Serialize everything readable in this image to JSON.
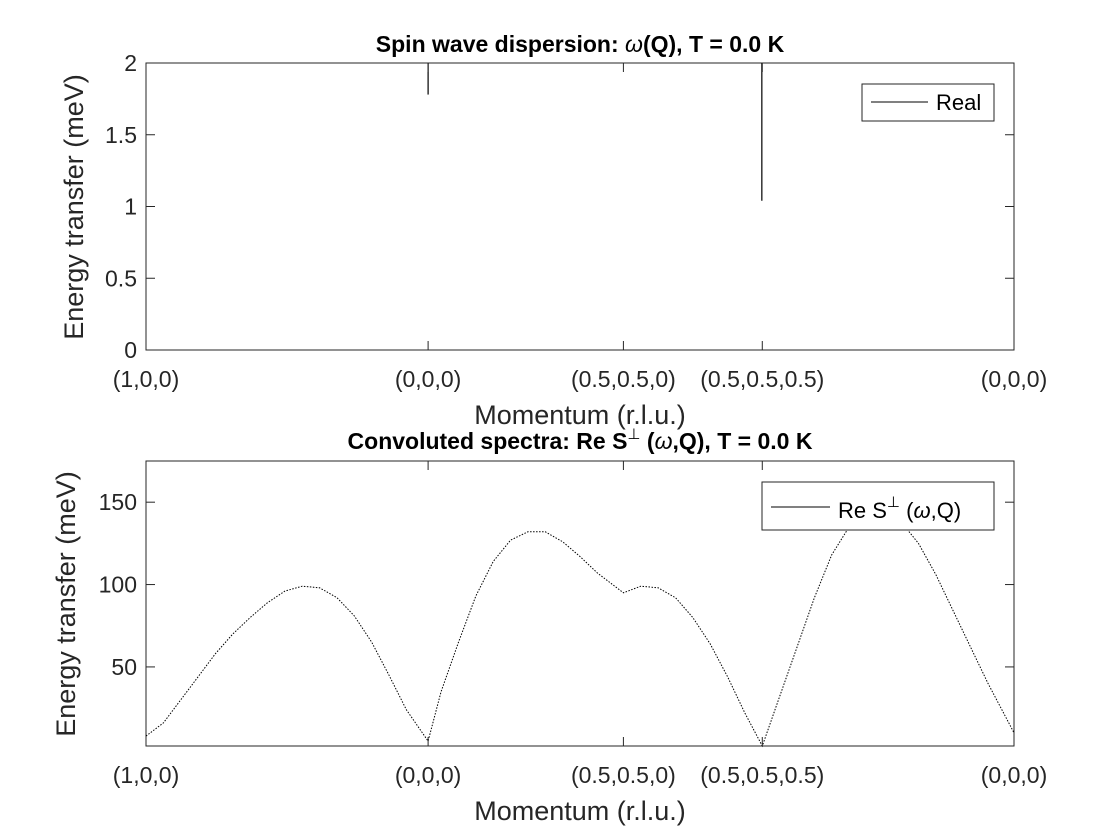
{
  "chart_data": [
    {
      "type": "line",
      "title_main": "Spin wave dispersion: ",
      "title_omega": "ω",
      "title_rest": "(Q), T =   0.0 K",
      "xlabel": "Momentum (r.l.u.)",
      "ylabel": "Energy transfer (meV)",
      "xlim": [
        0,
        1
      ],
      "ylim": [
        0,
        2
      ],
      "yticks": [
        0,
        0.5,
        1,
        1.5,
        2
      ],
      "ytick_labels": [
        "0",
        "0.5",
        "1",
        "1.5",
        "2"
      ],
      "xticks": [
        0,
        0.325,
        0.55,
        0.71,
        1
      ],
      "xtick_labels": [
        "(1,0,0)",
        "(0,0,0)",
        "(0.5,0.5,0)",
        "(0.5,0.5,0.5)",
        "(0,0,0)"
      ],
      "legend": {
        "position": "top-right",
        "entries": [
          {
            "label": "Real",
            "color": "#000000"
          }
        ]
      },
      "series": [
        {
          "name": "Real",
          "color": "#000000",
          "segments": [
            {
              "x": 0.325,
              "y": [
                1.78,
                2.0
              ]
            },
            {
              "x": 0.7095,
              "y": [
                1.04,
                2.0
              ]
            }
          ]
        }
      ]
    },
    {
      "type": "line",
      "title_main": "Convoluted spectra: Re S",
      "title_sup": "⊥",
      "title_rest_a": " (",
      "title_omega": "ω",
      "title_rest_b": ",Q), T =   0.0 K",
      "xlabel": "Momentum (r.l.u.)",
      "ylabel": "Energy transfer (meV)",
      "xlim": [
        0,
        1
      ],
      "ylim": [
        2,
        175
      ],
      "yticks": [
        50,
        100,
        150
      ],
      "ytick_labels": [
        "50",
        "100",
        "150"
      ],
      "xticks": [
        0,
        0.325,
        0.55,
        0.71,
        1
      ],
      "xtick_labels": [
        "(1,0,0)",
        "(0,0,0)",
        "(0.5,0.5,0)",
        "(0.5,0.5,0.5)",
        "(0,0,0)"
      ],
      "legend": {
        "position": "top-right",
        "entries": [
          {
            "label_main": "Re S",
            "label_sup": "⊥",
            "label_pre": " (",
            "label_omega": "ω",
            "label_post": ",Q)",
            "color": "#000000"
          }
        ]
      },
      "series": [
        {
          "name": "Re S⊥ (ω,Q)",
          "color": "#000000",
          "x": [
            0.0,
            0.02,
            0.04,
            0.06,
            0.08,
            0.1,
            0.12,
            0.14,
            0.16,
            0.18,
            0.2,
            0.22,
            0.24,
            0.26,
            0.28,
            0.3,
            0.325,
            0.34,
            0.36,
            0.38,
            0.4,
            0.42,
            0.44,
            0.46,
            0.48,
            0.5,
            0.52,
            0.55,
            0.57,
            0.59,
            0.61,
            0.63,
            0.65,
            0.67,
            0.69,
            0.71,
            0.73,
            0.75,
            0.77,
            0.79,
            0.81,
            0.83,
            0.85,
            0.87,
            0.89,
            0.91,
            0.93,
            0.95,
            0.97,
            1.0
          ],
          "y": [
            8,
            16,
            30,
            44,
            58,
            70,
            80,
            89,
            96,
            99,
            98,
            92,
            81,
            65,
            45,
            24,
            5,
            35,
            65,
            93,
            114,
            127,
            132,
            132,
            126,
            117,
            107,
            95,
            99,
            98,
            92,
            80,
            64,
            44,
            22,
            2,
            32,
            62,
            92,
            118,
            135,
            145,
            145,
            138,
            125,
            106,
            84,
            62,
            40,
            10
          ]
        }
      ]
    }
  ]
}
